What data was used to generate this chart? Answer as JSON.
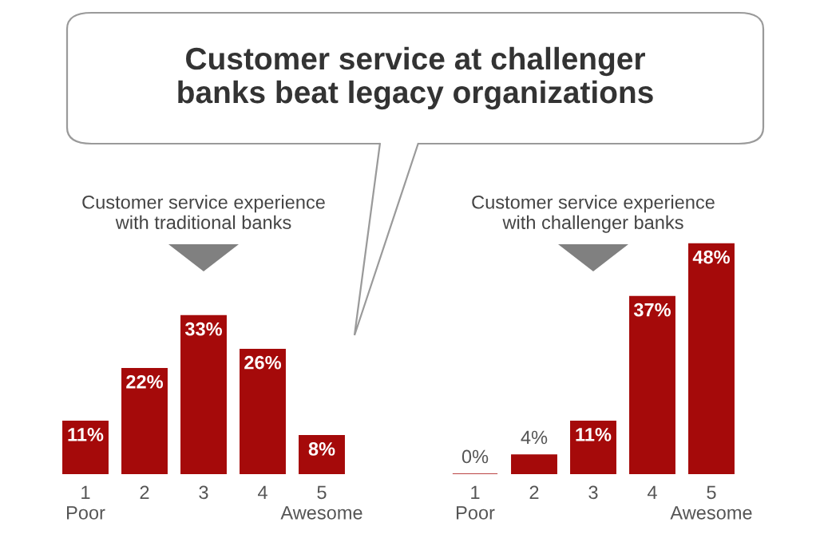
{
  "chart_data": [
    {
      "type": "bar",
      "title": "Customer service experience\nwith traditional banks",
      "categories": [
        "1\nPoor",
        "2",
        "3",
        "4",
        "5\nAwesome"
      ],
      "values": [
        11,
        22,
        33,
        26,
        8
      ],
      "value_labels": [
        "11%",
        "22%",
        "33%",
        "26%",
        "8%"
      ],
      "color": "#a50a0a",
      "annotations": [
        "Customer service at challenger\nbanks beat legacy organizations"
      ]
    },
    {
      "type": "bar",
      "title": "Customer service experience\nwith challenger banks",
      "categories": [
        "1\nPoor",
        "2",
        "3",
        "4",
        "5\nAwesome"
      ],
      "values": [
        0,
        4,
        11,
        37,
        48
      ],
      "value_labels": [
        "0%",
        "4%",
        "11%",
        "37%",
        "48%"
      ],
      "color": "#a50a0a"
    }
  ]
}
